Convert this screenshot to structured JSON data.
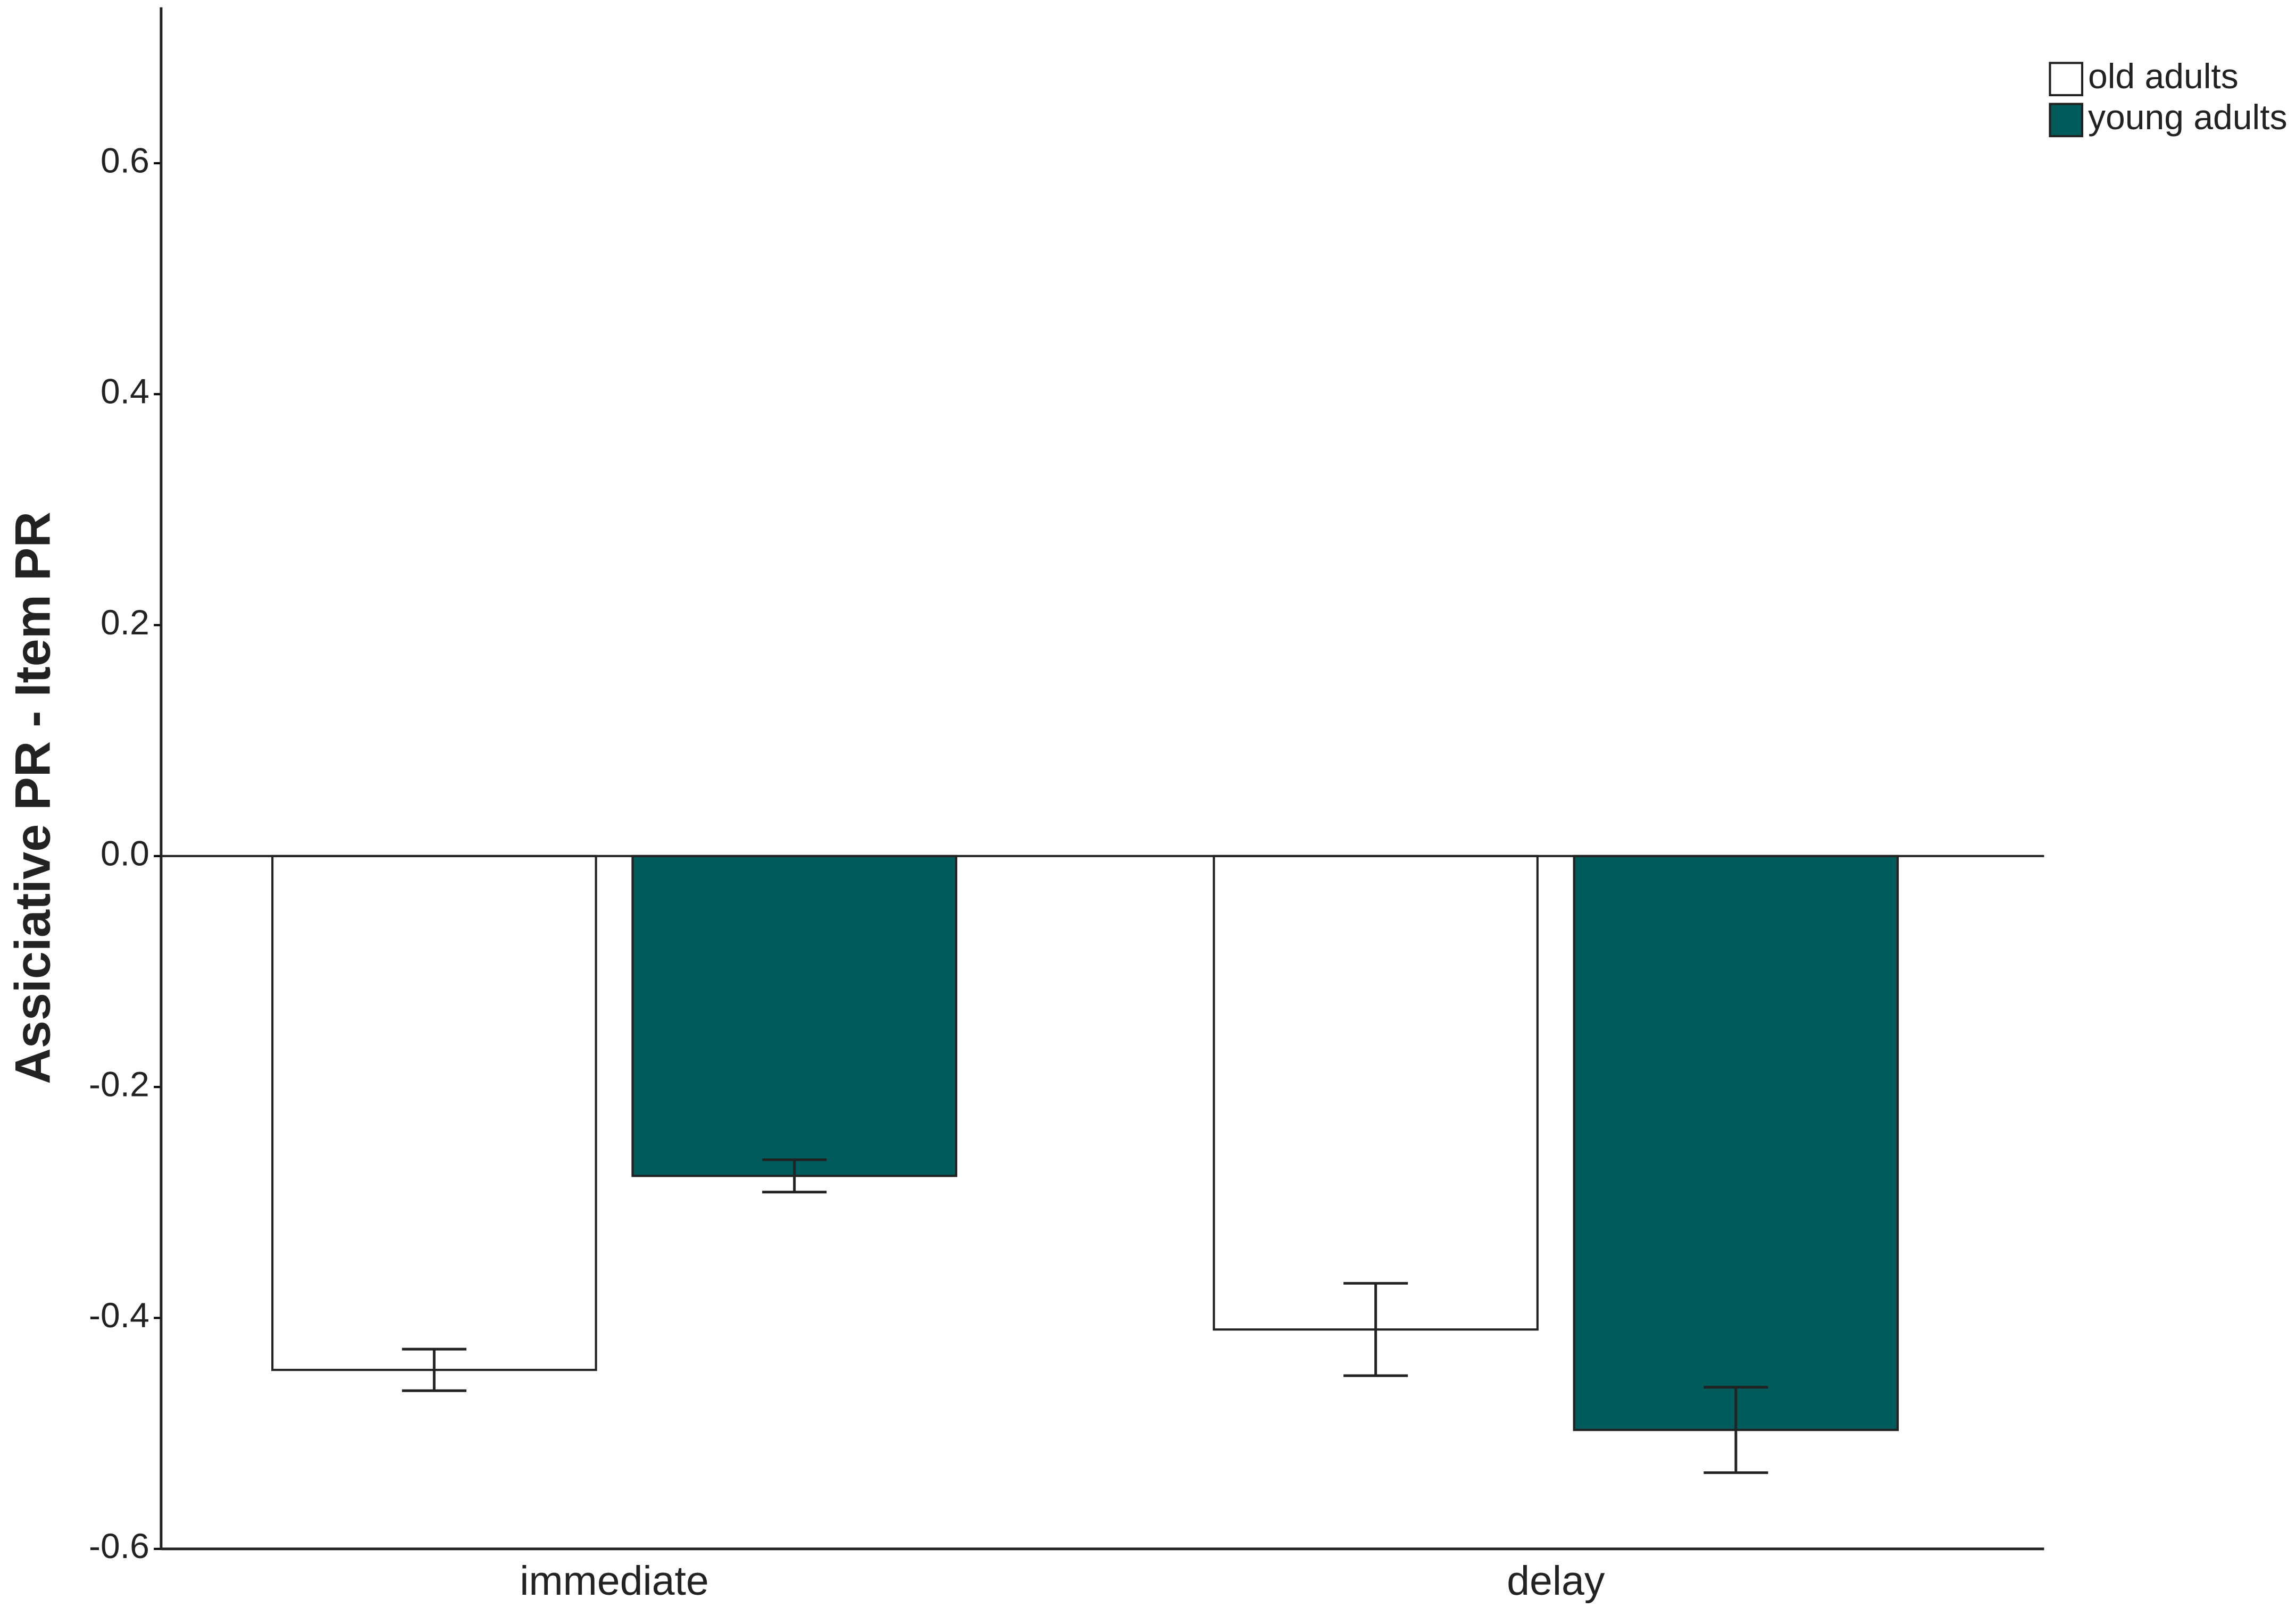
{
  "chart_data": {
    "type": "bar",
    "y_label": "Assiciative PR - Item PR",
    "categories": [
      "immediate",
      "delay"
    ],
    "series": [
      {
        "name": "old adults",
        "color": "#ffffff",
        "values": [
          -0.445,
          -0.41
        ],
        "error": [
          0.018,
          0.04
        ]
      },
      {
        "name": "young adults",
        "color": "#025b5b",
        "values": [
          -0.277,
          -0.497
        ],
        "error": [
          0.014,
          0.037
        ]
      }
    ],
    "ylim": [
      -0.6,
      0.735
    ],
    "yticks": [
      -0.6,
      -0.4,
      -0.2,
      {
        "value": 0,
        "label": "0.0"
      },
      0.2,
      0.4,
      0.6
    ],
    "legend": "top-right"
  }
}
